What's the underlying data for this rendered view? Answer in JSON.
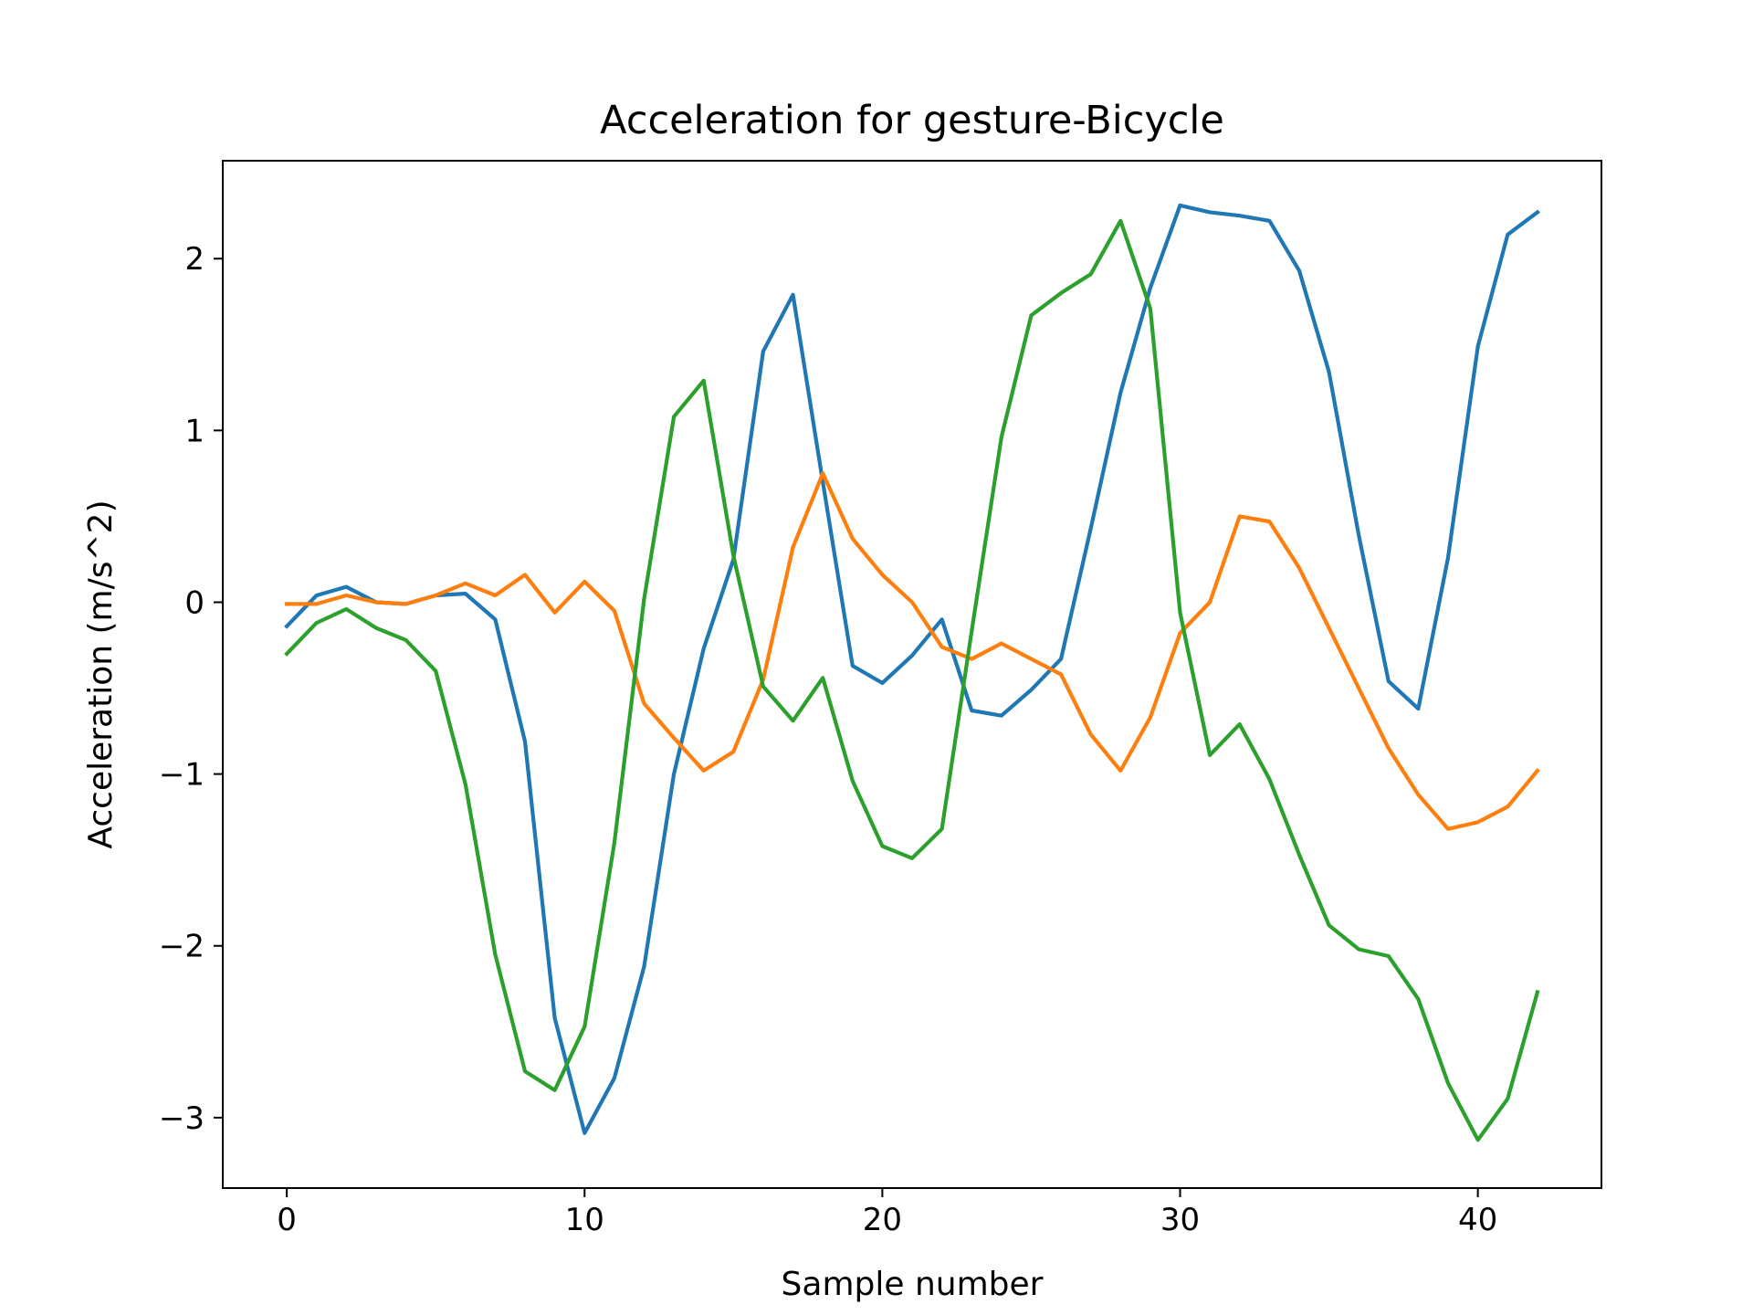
{
  "chart_data": {
    "type": "line",
    "title": "Acceleration for gesture-Bicycle",
    "xlabel": "Sample number",
    "ylabel": "Acceleration (m/s^2)",
    "xlim": [
      -2.15,
      44.15
    ],
    "ylim": [
      -3.41,
      2.57
    ],
    "xticks": [
      0,
      10,
      20,
      30,
      40
    ],
    "xtick_labels": [
      "0",
      "10",
      "20",
      "30",
      "40"
    ],
    "yticks": [
      -3,
      -2,
      -1,
      0,
      1,
      2
    ],
    "ytick_labels": [
      "−3",
      "−2",
      "−1",
      "0",
      "1",
      "2"
    ],
    "grid": false,
    "legend": "none",
    "x": [
      0,
      1,
      2,
      3,
      4,
      5,
      6,
      7,
      8,
      9,
      10,
      11,
      12,
      13,
      14,
      15,
      16,
      17,
      18,
      19,
      20,
      21,
      22,
      23,
      24,
      25,
      26,
      27,
      28,
      29,
      30,
      31,
      32,
      33,
      34,
      35,
      36,
      37,
      38,
      39,
      40,
      41,
      42
    ],
    "series": [
      {
        "color": "#1f77b4",
        "values": [
          -0.14,
          0.04,
          0.09,
          0.0,
          -0.01,
          0.04,
          0.05,
          -0.1,
          -0.81,
          -2.42,
          -3.09,
          -2.77,
          -2.12,
          -1.0,
          -0.27,
          0.25,
          1.46,
          1.79,
          0.7,
          -0.37,
          -0.47,
          -0.31,
          -0.1,
          -0.63,
          -0.66,
          -0.51,
          -0.33,
          0.43,
          1.22,
          1.83,
          2.31,
          2.27,
          2.25,
          2.22,
          1.93,
          1.34,
          0.39,
          -0.46,
          -0.62,
          0.26,
          1.49,
          2.14,
          2.27
        ]
      },
      {
        "color": "#ff7f0e",
        "values": [
          -0.01,
          -0.01,
          0.04,
          0.0,
          -0.01,
          0.04,
          0.11,
          0.04,
          0.16,
          -0.06,
          0.12,
          -0.05,
          -0.59,
          -0.79,
          -0.98,
          -0.87,
          -0.45,
          0.32,
          0.75,
          0.37,
          0.16,
          0.0,
          -0.26,
          -0.33,
          -0.24,
          -0.33,
          -0.42,
          -0.77,
          -0.98,
          -0.67,
          -0.18,
          0.0,
          0.5,
          0.47,
          0.2,
          -0.15,
          -0.5,
          -0.85,
          -1.12,
          -1.32,
          -1.28,
          -1.19,
          -0.98
        ]
      },
      {
        "color": "#2ca02c",
        "values": [
          -0.3,
          -0.12,
          -0.04,
          -0.15,
          -0.22,
          -0.4,
          -1.06,
          -2.05,
          -2.73,
          -2.84,
          -2.47,
          -1.4,
          0.02,
          1.08,
          1.29,
          0.27,
          -0.49,
          -0.69,
          -0.44,
          -1.04,
          -1.42,
          -1.49,
          -1.32,
          -0.17,
          0.96,
          1.67,
          1.8,
          1.91,
          2.22,
          1.71,
          -0.06,
          -0.89,
          -0.71,
          -1.03,
          -1.47,
          -1.88,
          -2.02,
          -2.06,
          -2.31,
          -2.8,
          -3.13,
          -2.89,
          -2.27
        ]
      }
    ]
  }
}
